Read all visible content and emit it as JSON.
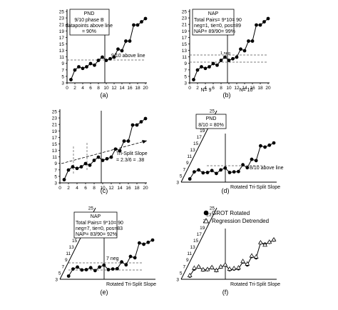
{
  "chart_data": [
    {
      "type": "line",
      "caption": "(a)",
      "x": [
        1,
        2,
        3,
        4,
        5,
        6,
        7,
        8,
        9,
        10,
        11,
        12,
        13,
        14,
        15,
        16,
        17,
        18,
        19,
        20
      ],
      "series": [
        {
          "values": [
            4,
            7,
            8,
            7.5,
            8,
            9,
            8.5,
            10,
            11,
            10,
            10.5,
            11,
            13.5,
            13,
            16,
            16,
            21,
            21,
            22,
            23
          ]
        }
      ],
      "xlim": [
        0,
        20
      ],
      "ylim": [
        3,
        25
      ],
      "xticks": [
        "0",
        "2",
        "4",
        "6",
        "8",
        "10",
        "12",
        "14",
        "16",
        "18",
        "20"
      ],
      "yticks": [
        "3",
        "5",
        "7",
        "9",
        "11",
        "13",
        "15",
        "17",
        "19",
        "21",
        "23",
        "25"
      ],
      "phase_line_x": 10,
      "annotations": [
        "PND",
        "9/10 phase B",
        "datapoints above line",
        "= 90%",
        "9/10 above line"
      ]
    },
    {
      "type": "line",
      "caption": "(b)",
      "x": [
        1,
        2,
        3,
        4,
        5,
        6,
        7,
        8,
        9,
        10,
        11,
        12,
        13,
        14,
        15,
        16,
        17,
        18,
        19,
        20
      ],
      "series": [
        {
          "values": [
            4,
            7,
            8,
            7.5,
            8,
            9,
            8.5,
            10,
            11,
            10,
            10.5,
            11,
            13.5,
            13,
            16,
            16,
            21,
            21,
            22,
            23
          ]
        }
      ],
      "xlim": [
        0,
        20
      ],
      "ylim": [
        3,
        25
      ],
      "xticks": [
        "0",
        "2",
        "4",
        "6",
        "8",
        "10",
        "12",
        "14",
        "16",
        "18",
        "20"
      ],
      "yticks": [
        "3",
        "5",
        "7",
        "9",
        "11",
        "13",
        "15",
        "17",
        "19",
        "21",
        "23",
        "25"
      ],
      "phase_line_x": 10,
      "annotations": [
        "NAP",
        "Total Pairs= 9*10= 90",
        "neg=1, tie=0, pos=89",
        "NAP= 89/90= 99%",
        "1 neg",
        "N= 9",
        "N= 10"
      ]
    },
    {
      "type": "line",
      "caption": "(c)",
      "x": [
        1,
        2,
        3,
        4,
        5,
        6,
        7,
        8,
        9,
        10,
        11,
        12,
        13,
        14,
        15,
        16,
        17,
        18,
        19,
        20
      ],
      "series": [
        {
          "values": [
            4,
            7,
            8,
            7.5,
            8,
            9,
            8.5,
            10,
            11,
            10,
            10.5,
            11,
            13.5,
            13,
            16,
            16,
            21,
            21,
            22,
            23
          ]
        }
      ],
      "xlim": [
        0,
        20
      ],
      "ylim": [
        3,
        25
      ],
      "xticks": [
        "0",
        "2",
        "4",
        "6",
        "8",
        "10",
        "12",
        "14",
        "16",
        "18",
        "20"
      ],
      "yticks": [
        "3",
        "5",
        "7",
        "9",
        "11",
        "13",
        "15",
        "17",
        "19",
        "21",
        "23",
        "25"
      ],
      "phase_line_x": 10,
      "annotations": [
        "Tri-Split Slope",
        "= 2.3/6 = .38"
      ]
    },
    {
      "type": "line",
      "caption": "(d)",
      "x": [
        1,
        2,
        3,
        4,
        5,
        6,
        7,
        8,
        9,
        10,
        11,
        12,
        13,
        14,
        15,
        16,
        17,
        18,
        19,
        20
      ],
      "series": [
        {
          "values": [
            4,
            6.2,
            6.8,
            5.9,
            6,
            6.6,
            5.7,
            6.8,
            7.4,
            6,
            6.2,
            6.3,
            8.4,
            7.5,
            10.1,
            9.7,
            14.3,
            13.9,
            14.5,
            15.2
          ]
        }
      ],
      "ylim": [
        3,
        25
      ],
      "yticks": [
        "3",
        "5",
        "7",
        "9",
        "11",
        "13",
        "15",
        "17",
        "19",
        "21",
        "23",
        "25"
      ],
      "phase_line_x": 10,
      "xlabel": "Rotated Tri-Split Slope",
      "annotations": [
        "PND",
        "8/10 = 80%",
        "8/10 above line"
      ]
    },
    {
      "type": "line",
      "caption": "(e)",
      "x": [
        1,
        2,
        3,
        4,
        5,
        6,
        7,
        8,
        9,
        10,
        11,
        12,
        13,
        14,
        15,
        16,
        17,
        18,
        19,
        20
      ],
      "series": [
        {
          "values": [
            4,
            6.2,
            6.8,
            5.9,
            6,
            6.6,
            5.7,
            6.8,
            7.4,
            6,
            6.2,
            6.3,
            8.4,
            7.5,
            10.1,
            9.7,
            14.3,
            13.9,
            14.5,
            15.2
          ]
        }
      ],
      "ylim": [
        3,
        25
      ],
      "yticks": [
        "3",
        "5",
        "7",
        "9",
        "11",
        "13",
        "15",
        "17",
        "19",
        "21",
        "23",
        "25"
      ],
      "phase_line_x": 10,
      "xlabel": "Rotated Tri-Split Slope",
      "annotations": [
        "NAP",
        "Total Pairs= 9*10= 90",
        "neg=7, tie=0, pos=83",
        "NAP= 83/90= 92%",
        "7 neg"
      ]
    },
    {
      "type": "line",
      "caption": "(f)",
      "x": [
        1,
        2,
        3,
        4,
        5,
        6,
        7,
        8,
        9,
        10,
        11,
        12,
        13,
        14,
        15,
        16,
        17,
        18,
        19,
        20
      ],
      "series": [
        {
          "name": "GROT Rotated",
          "values": [
            4,
            6.2,
            6.8,
            5.9,
            6,
            6.6,
            5.7,
            6.8,
            7.4,
            6,
            6.2,
            6.3,
            8.4,
            7.5,
            10.1,
            9.7,
            14.3,
            13.9,
            14.5,
            15.2
          ]
        },
        {
          "name": "Regression Detrended",
          "values": [
            4.2,
            6.5,
            6.9,
            6,
            6.1,
            6.7,
            5.8,
            6.9,
            7.5,
            6.2,
            6.4,
            6.6,
            8.6,
            7.8,
            10.3,
            10,
            14.4,
            13.7,
            14.6,
            15.3
          ]
        }
      ],
      "ylim": [
        3,
        25
      ],
      "yticks": [
        "3",
        "5",
        "7",
        "9",
        "11",
        "13",
        "15",
        "17",
        "19",
        "21",
        "23",
        "25"
      ],
      "phase_line_x": 10,
      "xlabel": "Rotated Tri-Split Slope",
      "legend": "top-right"
    }
  ]
}
